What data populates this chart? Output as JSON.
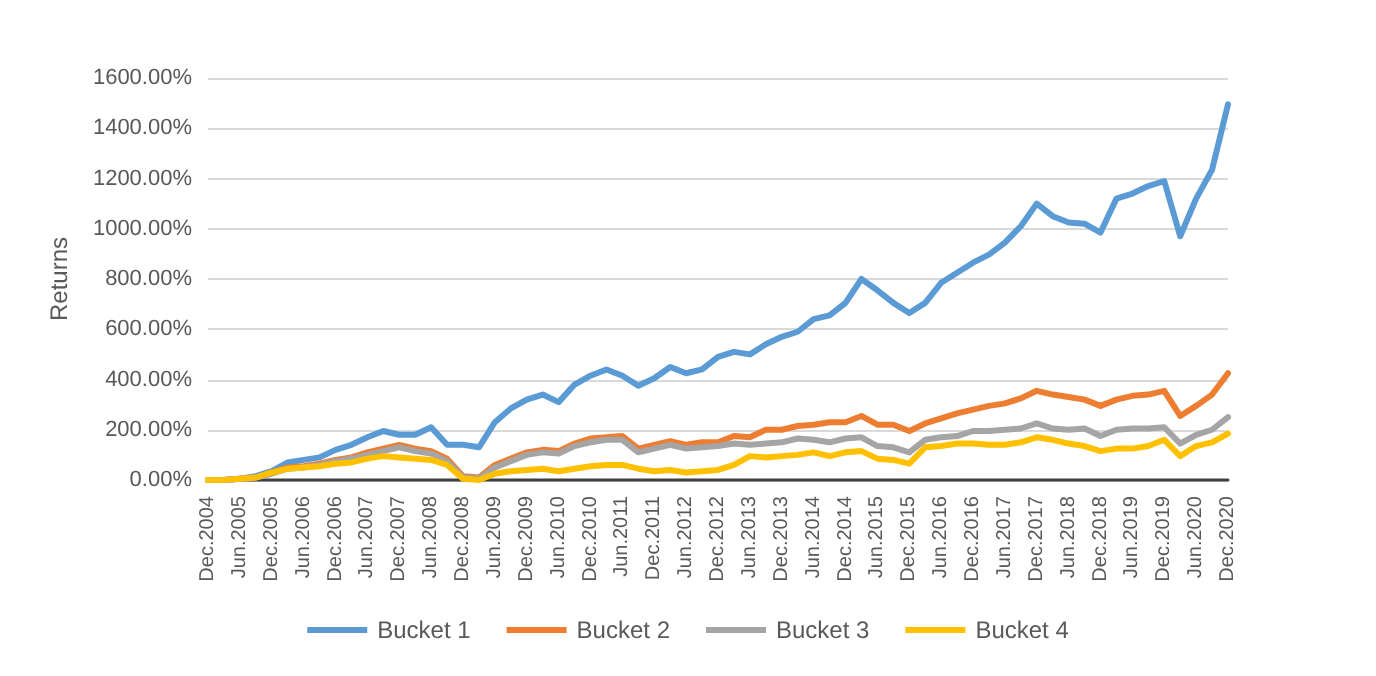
{
  "chart_data": {
    "type": "line",
    "ylabel": "Returns",
    "categories": [
      "Dec.2004",
      null,
      "Jun.2005",
      null,
      "Dec.2005",
      null,
      "Jun.2006",
      null,
      "Dec.2006",
      null,
      "Jun.2007",
      null,
      "Dec.2007",
      null,
      "Jun.2008",
      null,
      "Dec.2008",
      null,
      "Jun.2009",
      null,
      "Dec.2009",
      null,
      "Jun.2010",
      null,
      "Dec.2010",
      null,
      "Jun.2011",
      null,
      "Dec.2011",
      null,
      "Jun.2012",
      null,
      "Dec.2012",
      null,
      "Jun.2013",
      null,
      "Dec.2013",
      null,
      "Jun.2014",
      null,
      "Dec.2014",
      null,
      "Jun.2015",
      null,
      "Dec.2015",
      null,
      "Jun.2016",
      null,
      "Dec.2016",
      null,
      "Jun.2017",
      null,
      "Dec.2017",
      null,
      "Jun.2018",
      null,
      "Dec.2018",
      null,
      "Jun.2019",
      null,
      "Dec.2019",
      null,
      "Jun.2020",
      null,
      "Dec.2020"
    ],
    "series": [
      {
        "name": "Bucket 1",
        "color": "#5b9bd5",
        "values": [
          0,
          0,
          5,
          15,
          35,
          70,
          80,
          90,
          120,
          140,
          170,
          195,
          180,
          180,
          210,
          140,
          140,
          130,
          230,
          285,
          320,
          340,
          310,
          380,
          415,
          440,
          415,
          375,
          405,
          450,
          425,
          440,
          490,
          510,
          500,
          540,
          570,
          590,
          640,
          655,
          705,
          800,
          755,
          705,
          665,
          705,
          785,
          825,
          865,
          897,
          945,
          1010,
          1100,
          1050,
          1025,
          1020,
          985,
          1120,
          1140,
          1170,
          1190,
          970,
          1120,
          1235,
          1495
        ]
      },
      {
        "name": "Bucket 2",
        "color": "#ed7d31",
        "values": [
          0,
          0,
          5,
          10,
          30,
          50,
          55,
          65,
          80,
          90,
          110,
          125,
          140,
          125,
          115,
          85,
          15,
          10,
          60,
          85,
          110,
          120,
          115,
          145,
          165,
          170,
          175,
          125,
          140,
          155,
          140,
          150,
          150,
          175,
          170,
          200,
          200,
          215,
          220,
          230,
          230,
          255,
          220,
          220,
          195,
          225,
          245,
          265,
          280,
          295,
          305,
          325,
          355,
          340,
          330,
          320,
          295,
          320,
          335,
          340,
          355,
          255,
          295,
          340,
          425
        ]
      },
      {
        "name": "Bucket 3",
        "color": "#a5a5a5",
        "values": [
          0,
          0,
          5,
          10,
          25,
          45,
          50,
          60,
          75,
          85,
          100,
          115,
          130,
          115,
          105,
          75,
          10,
          5,
          50,
          75,
          100,
          110,
          105,
          135,
          150,
          160,
          160,
          110,
          125,
          140,
          125,
          130,
          135,
          145,
          140,
          145,
          150,
          165,
          160,
          150,
          165,
          170,
          135,
          130,
          110,
          160,
          170,
          175,
          195,
          195,
          200,
          205,
          225,
          205,
          200,
          205,
          175,
          200,
          205,
          205,
          210,
          145,
          180,
          200,
          250
        ]
      },
      {
        "name": "Bucket 4",
        "color": "#ffc000",
        "values": [
          0,
          0,
          5,
          10,
          30,
          45,
          50,
          55,
          65,
          70,
          85,
          95,
          90,
          85,
          80,
          60,
          5,
          0,
          25,
          35,
          40,
          45,
          35,
          45,
          55,
          60,
          60,
          45,
          35,
          40,
          30,
          35,
          40,
          60,
          95,
          90,
          95,
          100,
          110,
          95,
          110,
          115,
          85,
          80,
          65,
          130,
          135,
          145,
          145,
          140,
          140,
          150,
          170,
          160,
          145,
          135,
          115,
          125,
          125,
          135,
          160,
          95,
          135,
          150,
          185
        ]
      }
    ],
    "ylim": [
      0,
      1600
    ],
    "yticks": [
      {
        "value": 0,
        "label": "0.00%"
      },
      {
        "value": 200,
        "label": "200.00%"
      },
      {
        "value": 400,
        "label": "400.00%"
      },
      {
        "value": 600,
        "label": "600.00%"
      },
      {
        "value": 800,
        "label": "800.00%"
      },
      {
        "value": 1000,
        "label": "1000.00%"
      },
      {
        "value": 1200,
        "label": "1200.00%"
      },
      {
        "value": 1400,
        "label": "1400.00%"
      },
      {
        "value": 1600,
        "label": "1600.00%"
      }
    ],
    "grid": "y",
    "legend": "bottom",
    "marker": "none",
    "line_style": "solid"
  }
}
